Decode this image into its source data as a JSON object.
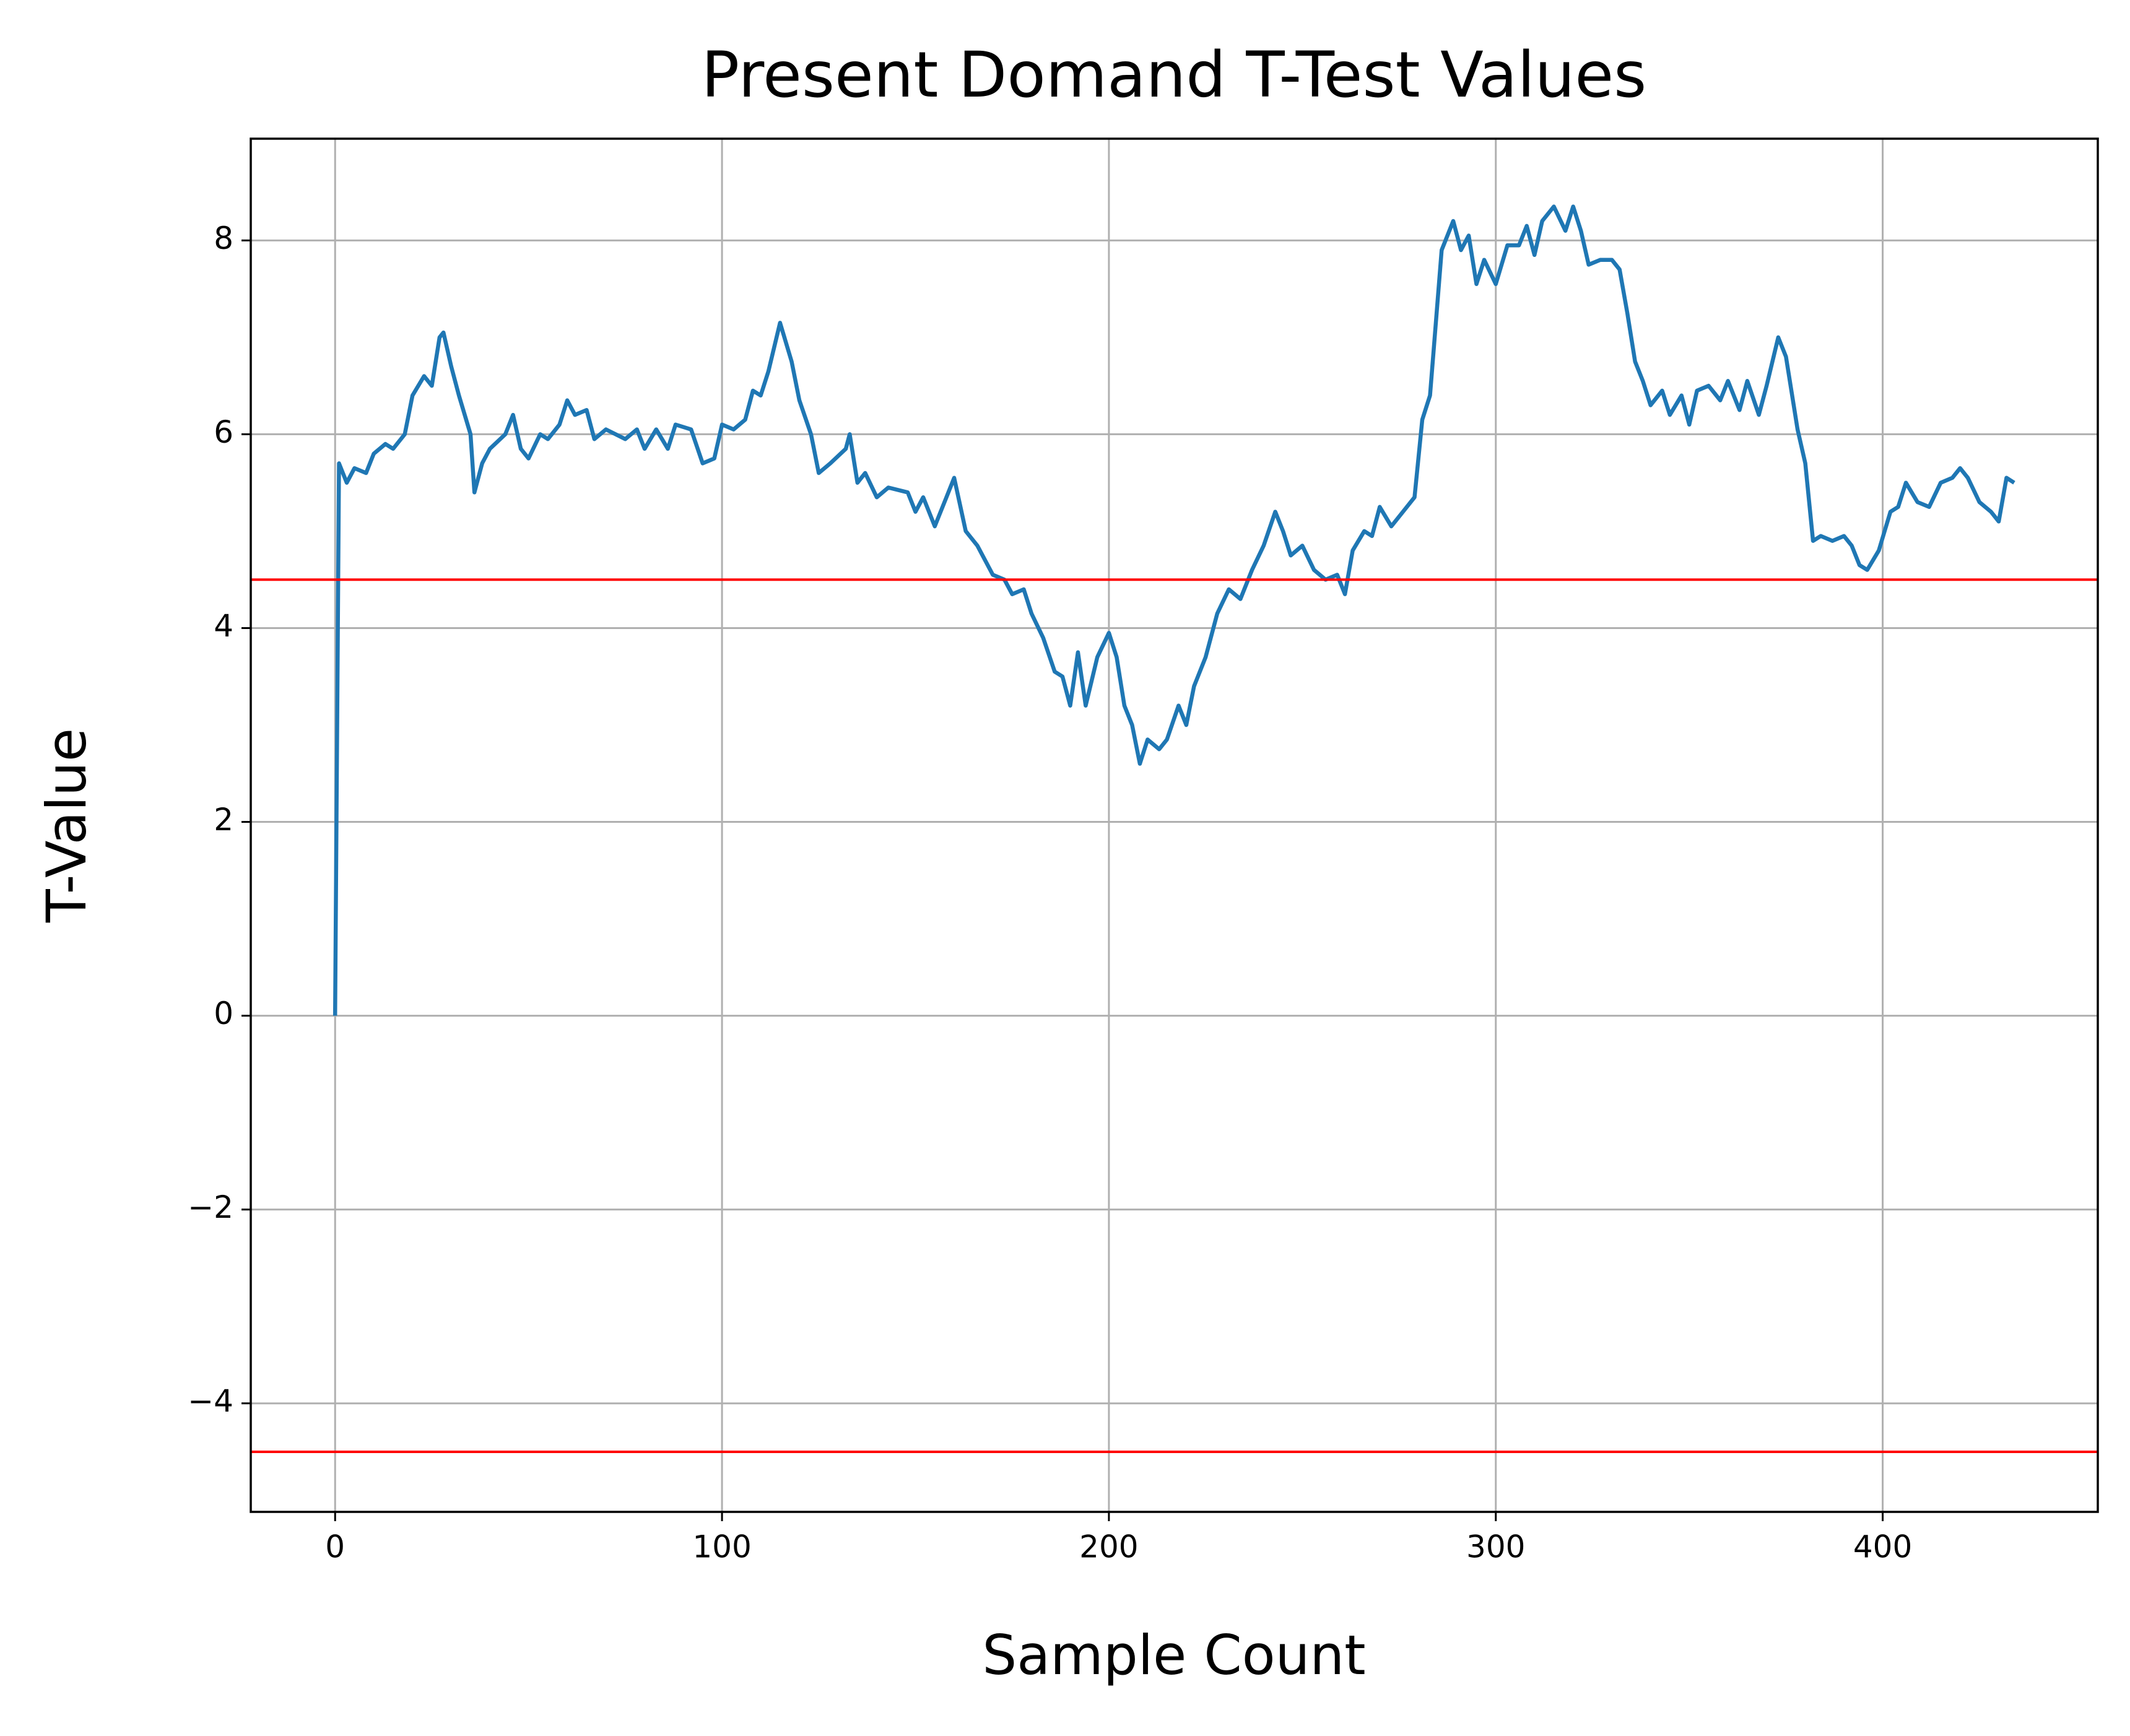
{
  "chart_data": {
    "type": "line",
    "title": "Present Domand T-Test Values",
    "x_label": "Sample Count",
    "y_label": "T-Value",
    "x": [
      0,
      1,
      3,
      5,
      8,
      10,
      13,
      15,
      18,
      20,
      23,
      25,
      27,
      28,
      30,
      32,
      35,
      36,
      38,
      40,
      44,
      46,
      48,
      50,
      53,
      55,
      58,
      60,
      62,
      65,
      67,
      70,
      75,
      78,
      80,
      83,
      86,
      88,
      92,
      95,
      98,
      100,
      103,
      106,
      108,
      110,
      112,
      115,
      118,
      120,
      123,
      125,
      128,
      132,
      133,
      135,
      137,
      140,
      143,
      148,
      150,
      152,
      155,
      158,
      160,
      163,
      166,
      170,
      173,
      175,
      178,
      180,
      183,
      186,
      188,
      190,
      192,
      194,
      197,
      200,
      202,
      204,
      206,
      208,
      210,
      213,
      215,
      218,
      220,
      222,
      225,
      228,
      231,
      234,
      237,
      240,
      243,
      245,
      247,
      250,
      253,
      256,
      259,
      261,
      263,
      266,
      268,
      270,
      273,
      276,
      279,
      281,
      283,
      284,
      286,
      289,
      291,
      293,
      295,
      297,
      300,
      303,
      306,
      308,
      310,
      312,
      315,
      318,
      320,
      322,
      324,
      327,
      330,
      332,
      334,
      336,
      338,
      340,
      343,
      345,
      348,
      350,
      352,
      355,
      358,
      360,
      363,
      365,
      368,
      370,
      373,
      375,
      378,
      380,
      382,
      384,
      387,
      390,
      392,
      394,
      396,
      399,
      402,
      404,
      406,
      409,
      412,
      415,
      418,
      420,
      422,
      425,
      428,
      430,
      432,
      434
    ],
    "series": [
      {
        "name": "T-Value",
        "color": "#1f77b4",
        "values": [
          0,
          5.7,
          5.5,
          5.65,
          5.6,
          5.8,
          5.9,
          5.85,
          6.0,
          6.4,
          6.6,
          6.5,
          7.0,
          7.05,
          6.7,
          6.4,
          6.0,
          5.4,
          5.7,
          5.85,
          6.0,
          6.2,
          5.85,
          5.75,
          6.0,
          5.95,
          6.1,
          6.35,
          6.2,
          6.25,
          5.95,
          6.05,
          5.95,
          6.05,
          5.85,
          6.05,
          5.85,
          6.1,
          6.05,
          5.7,
          5.75,
          6.1,
          6.05,
          6.15,
          6.45,
          6.4,
          6.65,
          7.15,
          6.75,
          6.35,
          6.0,
          5.6,
          5.7,
          5.85,
          6.0,
          5.5,
          5.6,
          5.35,
          5.45,
          5.4,
          5.2,
          5.35,
          5.05,
          5.35,
          5.55,
          5.0,
          4.85,
          4.55,
          4.5,
          4.35,
          4.4,
          4.15,
          3.9,
          3.55,
          3.5,
          3.2,
          3.75,
          3.2,
          3.7,
          3.95,
          3.7,
          3.2,
          3.0,
          2.6,
          2.85,
          2.75,
          2.85,
          3.2,
          3.0,
          3.4,
          3.7,
          4.15,
          4.4,
          4.3,
          4.6,
          4.85,
          5.2,
          5.0,
          4.75,
          4.85,
          4.6,
          4.5,
          4.55,
          4.35,
          4.8,
          5.0,
          4.95,
          5.25,
          5.05,
          5.2,
          5.35,
          6.15,
          6.4,
          6.9,
          7.9,
          8.2,
          7.9,
          8.05,
          7.55,
          7.8,
          7.55,
          7.95,
          7.95,
          8.15,
          7.85,
          8.2,
          8.35,
          8.1,
          8.35,
          8.1,
          7.75,
          7.8,
          7.8,
          7.7,
          7.25,
          6.75,
          6.55,
          6.3,
          6.45,
          6.2,
          6.4,
          6.1,
          6.45,
          6.5,
          6.35,
          6.55,
          6.25,
          6.55,
          6.2,
          6.5,
          7.0,
          6.8,
          6.05,
          5.7,
          4.9,
          4.95,
          4.9,
          4.95,
          4.85,
          4.65,
          4.6,
          4.8,
          5.2,
          5.25,
          5.5,
          5.3,
          5.25,
          5.5,
          5.55,
          5.65,
          5.55,
          5.3,
          5.2,
          5.1,
          5.55,
          5.5
        ]
      }
    ],
    "hlines": [
      {
        "value": 4.5,
        "color": "#ff0000"
      },
      {
        "value": -4.5,
        "color": "#ff0000"
      }
    ],
    "xlim": [
      -21.8,
      455.6
    ],
    "ylim": [
      -5.12,
      9.05
    ],
    "xticks": [
      0,
      100,
      200,
      300,
      400
    ],
    "yticks": [
      {
        "value": -4,
        "label": "−4"
      },
      {
        "value": -2,
        "label": "−2"
      },
      0,
      2,
      4,
      6,
      8
    ],
    "grid": true
  }
}
